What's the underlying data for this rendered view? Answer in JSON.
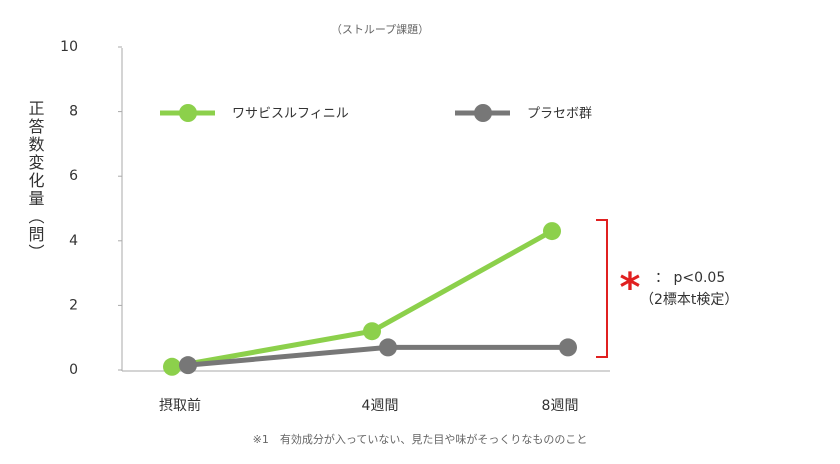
{
  "chart_data": {
    "type": "line",
    "title": "（ストループ課題）",
    "y_label": "正答数変化量（問）",
    "categories": [
      "摂取前",
      "4週間",
      "8週間"
    ],
    "series": [
      {
        "name": "ワサビスルフィニル",
        "color": "#8cd04b",
        "values": [
          0.1,
          1.2,
          4.3
        ]
      },
      {
        "name": "プラセボ群",
        "color": "#777777",
        "values": [
          0.15,
          0.7,
          0.7
        ]
      }
    ],
    "ylim": [
      0,
      10
    ],
    "yticks": [
      0,
      2,
      4,
      6,
      8,
      10
    ],
    "annotations": {
      "star": "*",
      "significance": "： p<0.05",
      "test": "（2標本t検定）"
    },
    "footnote": "※1　有効成分が入っていない、見た目や味がそっくりなもののこと"
  }
}
